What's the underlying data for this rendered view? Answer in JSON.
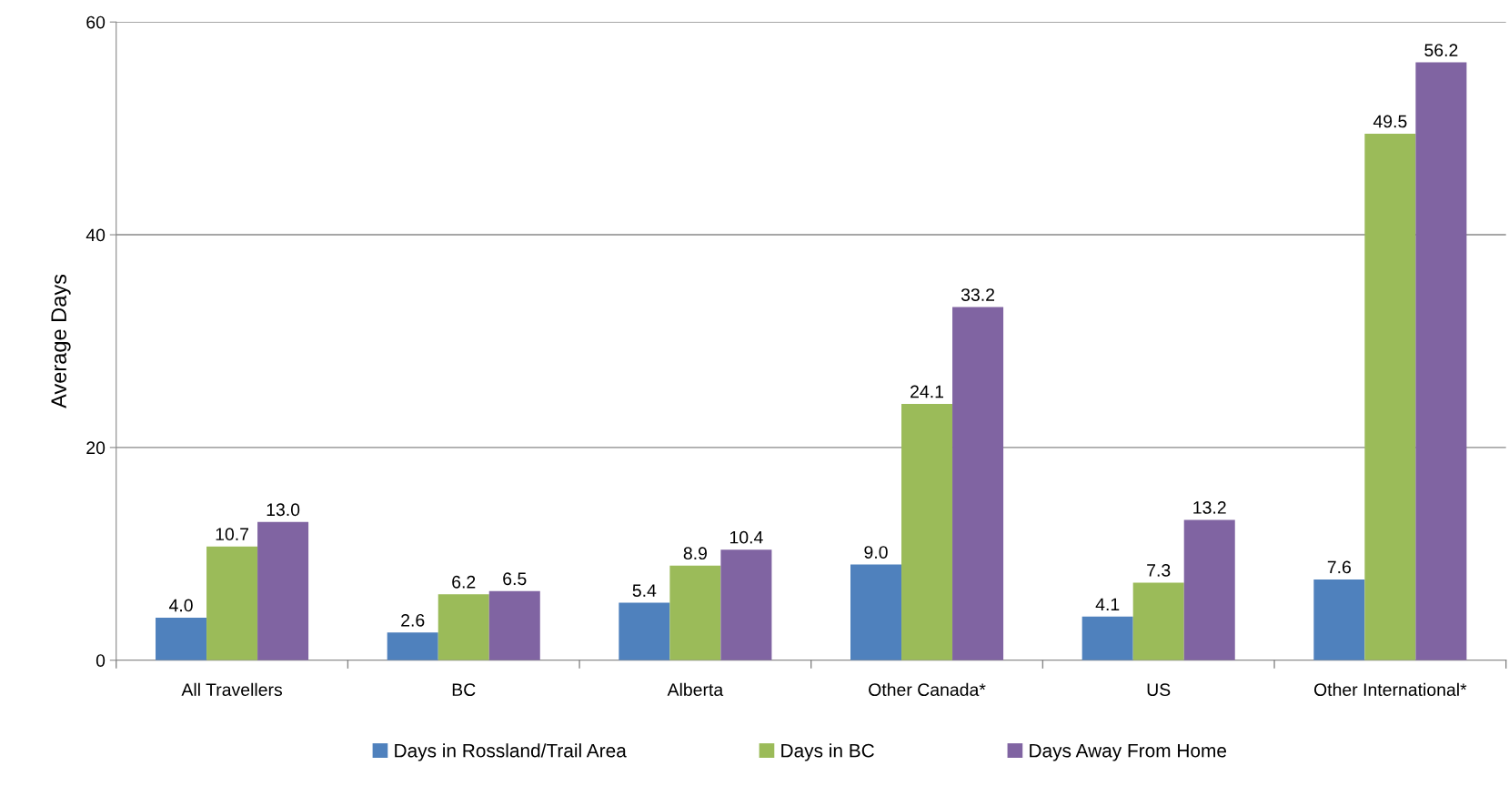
{
  "chart_data": {
    "type": "bar",
    "ylabel": "Average Days",
    "categories": [
      "All Travellers",
      "BC",
      "Alberta",
      "Other Canada*",
      "US",
      "Other International*"
    ],
    "series": [
      {
        "name": "Days in Rossland/Trail Area",
        "color": "#4f81bd",
        "values": [
          4.0,
          2.6,
          5.4,
          9.0,
          4.1,
          7.6
        ],
        "value_labels": [
          "4.0",
          "2.6",
          "5.4",
          "9.0",
          "4.1",
          "7.6"
        ]
      },
      {
        "name": "Days in BC",
        "color": "#9bbb59",
        "values": [
          10.7,
          6.2,
          8.9,
          24.1,
          7.3,
          49.5
        ],
        "value_labels": [
          "10.7",
          "6.2",
          "8.9",
          "24.1",
          "7.3",
          "49.5"
        ]
      },
      {
        "name": "Days Away From Home",
        "color": "#8064a2",
        "values": [
          13.0,
          6.5,
          10.4,
          33.2,
          13.2,
          56.2
        ],
        "value_labels": [
          "13.0",
          "6.5",
          "10.4",
          "33.2",
          "13.2",
          "56.2"
        ]
      }
    ],
    "ylim": [
      0,
      60
    ],
    "yticks": [
      0,
      20,
      40,
      60
    ],
    "grid": "y",
    "legend": "bottom"
  }
}
